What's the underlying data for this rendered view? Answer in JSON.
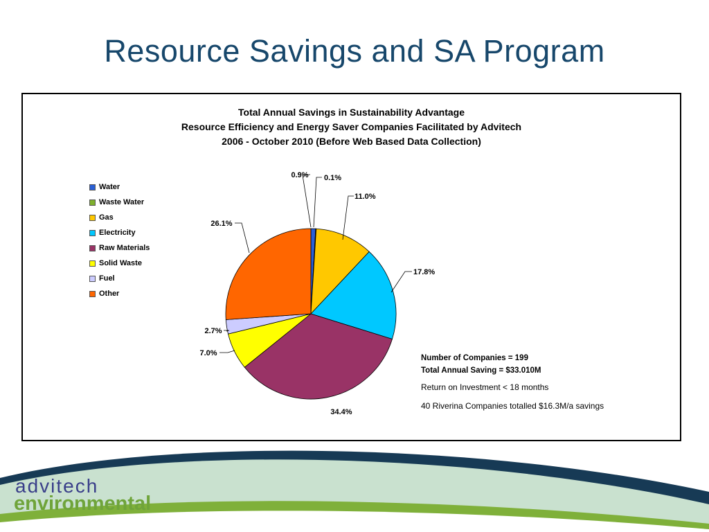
{
  "slide": {
    "title": "Resource Savings and SA Program"
  },
  "chart_data": {
    "type": "pie",
    "title_lines": [
      "Total Annual Savings in Sustainability Advantage",
      "Resource Efficiency and Energy Saver Companies Facilitated by Advitech",
      "2006 - October 2010 (Before Web Based Data Collection)"
    ],
    "legend_position": "left",
    "categories": [
      "Water",
      "Waste Water",
      "Gas",
      "Electricity",
      "Raw Materials",
      "Solid Waste",
      "Fuel",
      "Other"
    ],
    "values": [
      0.9,
      0.1,
      11.0,
      17.8,
      34.4,
      7.0,
      2.7,
      26.1
    ],
    "labels": [
      "0.9%",
      "0.1%",
      "11.0%",
      "17.8%",
      "34.4%",
      "7.0%",
      "2.7%",
      "26.1%"
    ],
    "colors": [
      "#2a5fd6",
      "#7fb02d",
      "#ffc800",
      "#00c8ff",
      "#993366",
      "#ffff00",
      "#ccccff",
      "#ff6600"
    ]
  },
  "notes": {
    "companies": "Number of Companies = 199",
    "total_saving": "Total Annual Saving = $33.010M",
    "roi": "Return on Investment < 18 months",
    "riverina": "40 Riverina Companies totalled $16.3M/a savings"
  },
  "footer": {
    "logo_line1": "advitech",
    "logo_line2": "environmental",
    "colors": {
      "navy": "#173a55",
      "light_green": "#c9e1cf",
      "green": "#7fb03a",
      "logo_blue": "#3a3f8a",
      "logo_green": "#6fa43a"
    }
  }
}
